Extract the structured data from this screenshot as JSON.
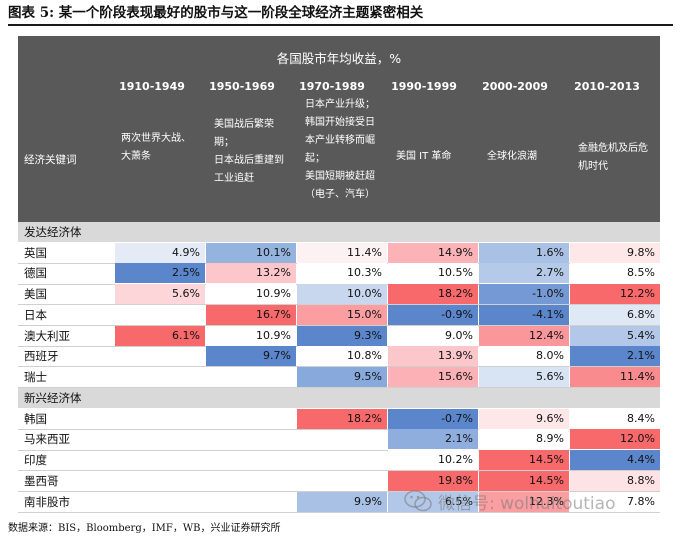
{
  "figure_title": "图表 5:  某一个阶段表现最好的股市与这一阶段全球经济主题紧密相关",
  "table_title": "各国股市年均收益，%",
  "keyword_label": "经济关键词",
  "periods": [
    {
      "label": "1910-1949",
      "desc": [
        "两次世界大战、",
        "大萧条"
      ]
    },
    {
      "label": "1950-1969",
      "desc": [
        "美国战后繁荣",
        "期；",
        "日本战后重建到",
        "工业追赶"
      ]
    },
    {
      "label": "1970-1989",
      "desc": [
        "日本产业升级；",
        "韩国开始接受日",
        "本产业转移而崛",
        "起；",
        "美国短期被赶超",
        "（电子、汽车）"
      ]
    },
    {
      "label": "1990-1999",
      "desc": [
        "美国 IT 革命"
      ]
    },
    {
      "label": "2000-2009",
      "desc": [
        "全球化浪潮"
      ]
    },
    {
      "label": "2010-2013",
      "desc": [
        "金融危机及后危",
        "机时代"
      ]
    }
  ],
  "groups": [
    {
      "name": "发达经济体",
      "rows": [
        {
          "name": "英国",
          "values": [
            "4.9%",
            "10.1%",
            "11.4%",
            "14.9%",
            "1.6%",
            "9.8%"
          ],
          "colors": [
            "#e4ebf6",
            "#95b3df",
            "#fdf2f3",
            "#fbb3b8",
            "#a9c1e5",
            "#fde7e9"
          ]
        },
        {
          "name": "德国",
          "values": [
            "2.5%",
            "13.2%",
            "10.3%",
            "10.5%",
            "2.7%",
            "8.5%"
          ],
          "colors": [
            "#5b86cc",
            "#fcc6ca",
            "#ffffff",
            "#ffffff",
            "#b5cae8",
            "#ffffff"
          ]
        },
        {
          "name": "美国",
          "values": [
            "5.6%",
            "10.9%",
            "10.0%",
            "18.2%",
            "-1.0%",
            "12.2%"
          ],
          "colors": [
            "#fcd6d9",
            "#ffffff",
            "#c8d7ee",
            "#f8696b",
            "#7599d5",
            "#f8696b"
          ]
        },
        {
          "name": "日本",
          "values": [
            "",
            "16.7%",
            "15.0%",
            "-0.9%",
            "-4.1%",
            "6.8%"
          ],
          "colors": [
            "",
            "#f8696b",
            "#fa9ea2",
            "#5b86cc",
            "#5b86cc",
            "#dfe8f5"
          ]
        },
        {
          "name": "澳大利亚",
          "values": [
            "6.1%",
            "10.9%",
            "9.3%",
            "9.0%",
            "12.4%",
            "5.4%"
          ],
          "colors": [
            "#f8696b",
            "#ffffff",
            "#5b86cc",
            "#ffffff",
            "#fa979b",
            "#b3c8e8"
          ]
        },
        {
          "name": "西班牙",
          "values": [
            "",
            "9.7%",
            "10.8%",
            "13.9%",
            "8.0%",
            "2.1%"
          ],
          "colors": [
            "",
            "#5b86cc",
            "#ffffff",
            "#fcc7cb",
            "#ffffff",
            "#5b86cc"
          ]
        },
        {
          "name": "瑞士",
          "values": [
            "",
            "",
            "9.5%",
            "15.6%",
            "5.6%",
            "11.4%"
          ],
          "colors": [
            "",
            "",
            "#88a9dc",
            "#fbb1b5",
            "#d8e3f3",
            "#f98b8f"
          ]
        }
      ]
    },
    {
      "name": "新兴经济体",
      "rows": [
        {
          "name": "韩国",
          "values": [
            "",
            "",
            "18.2%",
            "-0.7%",
            "9.6%",
            "8.4%"
          ],
          "colors": [
            "",
            "",
            "#f8696b",
            "#5b86cc",
            "#fde7e9",
            "#ffffff"
          ]
        },
        {
          "name": "马来西亚",
          "values": [
            "",
            "",
            "",
            "2.1%",
            "8.9%",
            "12.0%"
          ],
          "colors": [
            "",
            "",
            "",
            "#8faedd",
            "#ffffff",
            "#f8696b"
          ]
        },
        {
          "name": "印度",
          "values": [
            "",
            "",
            "",
            "10.2%",
            "14.5%",
            "4.4%"
          ],
          "colors": [
            "",
            "",
            "",
            "#ffffff",
            "#f8696b",
            "#5b86cc"
          ]
        },
        {
          "name": "墨西哥",
          "values": [
            "",
            "",
            "",
            "19.8%",
            "14.5%",
            "8.8%"
          ],
          "colors": [
            "",
            "",
            "",
            "#f8696b",
            "#f8696b",
            "#fde3e5"
          ]
        },
        {
          "name": "南非股市",
          "values": [
            "",
            "",
            "9.9%",
            "6.5%",
            "12.3%",
            "7.8%"
          ],
          "colors": [
            "",
            "",
            "#a9c1e5",
            "#b3c8e8",
            "#fa9ea2",
            "#ffffff"
          ]
        }
      ]
    }
  ],
  "source": "数据来源：BIS，Bloomberg，IMF，WB，兴业证券研究所",
  "watermark": "微信号: wolhuitoutiao"
}
